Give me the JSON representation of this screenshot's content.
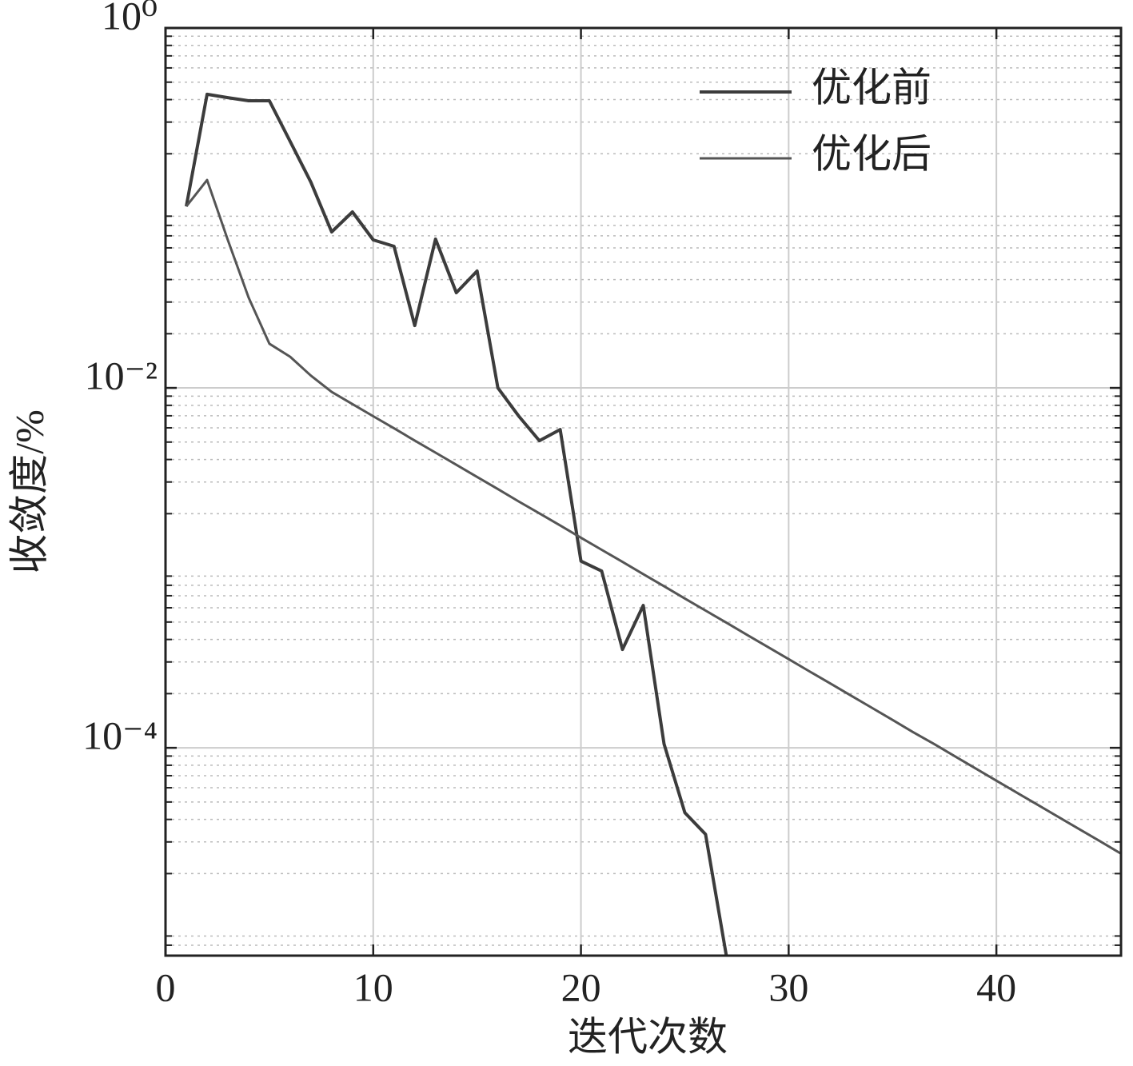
{
  "chart_data": {
    "type": "line",
    "x_label": "迭代次数",
    "y_label": "收敛度/%",
    "xlim": [
      0,
      46
    ],
    "xticks": [
      0,
      10,
      20,
      30,
      40
    ],
    "ylim": [
      7e-06,
      1
    ],
    "yscale": "log",
    "yticks": [
      {
        "value": 0.0001,
        "label": "10⁻⁴"
      },
      {
        "value": 0.01,
        "label": "10⁻²"
      },
      {
        "value": 1,
        "label": "10⁰"
      }
    ],
    "grid": true,
    "minor_grid": true,
    "legend": "upper right",
    "series": [
      {
        "name": "优化前",
        "color": "#3c3c3c",
        "x": [
          1,
          2,
          3,
          4,
          5,
          6,
          7,
          8,
          9,
          10,
          11,
          12,
          13,
          14,
          15,
          16,
          17,
          18,
          19,
          20,
          21,
          22,
          23,
          24,
          25,
          26,
          27
        ],
        "values": [
          0.102,
          0.428,
          0.41,
          0.394,
          0.394,
          0.234,
          0.139,
          0.0736,
          0.095,
          0.0664,
          0.0612,
          0.0222,
          0.0671,
          0.0338,
          0.0446,
          0.01,
          0.00699,
          0.00509,
          0.00587,
          0.00109,
          0.00096,
          0.000352,
          0.000618,
          0.000105,
          4.36e-05,
          3.31e-05,
          7e-06
        ]
      },
      {
        "name": "优化后",
        "color": "#555555",
        "x": [
          1,
          2,
          3,
          4,
          5,
          6,
          7,
          8,
          9,
          10,
          11,
          12,
          13,
          14,
          15,
          16,
          17,
          18,
          19,
          20,
          21,
          22,
          23,
          24,
          25,
          26,
          27,
          28,
          29,
          30,
          31,
          32,
          33,
          34,
          35,
          36,
          37,
          38,
          39,
          40,
          41,
          42,
          43,
          44,
          45,
          46
        ],
        "values": [
          0.102,
          0.143,
          0.0664,
          0.0318,
          0.0176,
          0.0149,
          0.0117,
          0.0095,
          0.00813,
          0.00696,
          0.00596,
          0.0051,
          0.00437,
          0.00374,
          0.0032,
          0.00274,
          0.00234,
          0.00201,
          0.00172,
          0.00147,
          0.00126,
          0.00108,
          0.000923,
          0.00079,
          0.000676,
          0.000579,
          0.000496,
          0.000424,
          0.000363,
          0.000311,
          0.000266,
          0.000228,
          0.000195,
          0.000167,
          0.000143,
          0.000122,
          0.000105,
          8.97e-05,
          7.68e-05,
          6.57e-05,
          5.62e-05,
          4.81e-05,
          4.12e-05,
          3.53e-05,
          3.02e-05,
          2.58e-05
        ]
      }
    ]
  }
}
